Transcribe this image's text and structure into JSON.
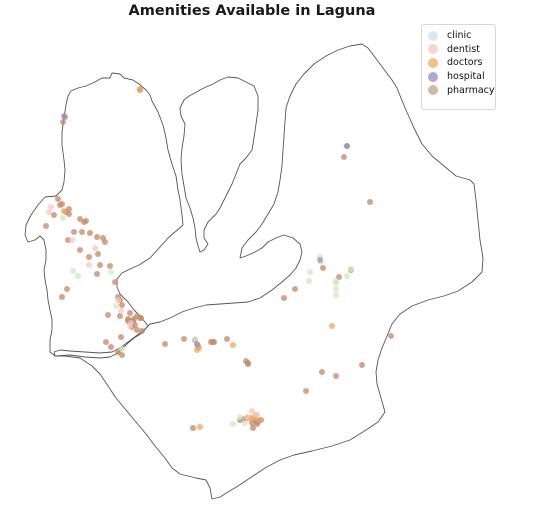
{
  "map": {
    "title": "Amenities Available in Laguna"
  },
  "legend": {
    "items": [
      {
        "label": "clinic",
        "color": "#d7e9f7"
      },
      {
        "label": "dentist",
        "color": "#fbd3d3"
      },
      {
        "label": "doctors",
        "color": "#f5bd8a"
      },
      {
        "label": "hospital",
        "color": "#b2a8cf"
      },
      {
        "label": "pharmacy",
        "color": "#d6b8a0"
      },
      {
        "label": "clinic",
        "color": "#d3efc5"
      }
    ]
  },
  "categories": {
    "clinic": {
      "color": "#cfe8bd"
    },
    "dentist": {
      "color": "#f7c6c1"
    },
    "doctors": {
      "color": "#f3a35a"
    },
    "hospital": {
      "color": "#9b8fc6"
    },
    "pharmacy": {
      "color": "#c48866"
    }
  },
  "points": {
    "pharmacy": [
      [
        63,
        122
      ],
      [
        65,
        117
      ],
      [
        140,
        90
      ],
      [
        58,
        199
      ],
      [
        62,
        204
      ],
      [
        66,
        212
      ],
      [
        69,
        209
      ],
      [
        54,
        215
      ],
      [
        46,
        226
      ],
      [
        68,
        240
      ],
      [
        80,
        219
      ],
      [
        84,
        222
      ],
      [
        90,
        233
      ],
      [
        97,
        237
      ],
      [
        103,
        238
      ],
      [
        105,
        242
      ],
      [
        74,
        232
      ],
      [
        82,
        232
      ],
      [
        89,
        257
      ],
      [
        98,
        254
      ],
      [
        100,
        265
      ],
      [
        110,
        266
      ],
      [
        80,
        250
      ],
      [
        115,
        282
      ],
      [
        118,
        297
      ],
      [
        120,
        300
      ],
      [
        122,
        305
      ],
      [
        108,
        315
      ],
      [
        120,
        316
      ],
      [
        128,
        319
      ],
      [
        132,
        321
      ],
      [
        137,
        316
      ],
      [
        141,
        318
      ],
      [
        132,
        327
      ],
      [
        137,
        330
      ],
      [
        142,
        331
      ],
      [
        135,
        325
      ],
      [
        121,
        337
      ],
      [
        97,
        274
      ],
      [
        62,
        297
      ],
      [
        67,
        289
      ],
      [
        106,
        342
      ],
      [
        111,
        347
      ],
      [
        118,
        352
      ],
      [
        122,
        355
      ],
      [
        165,
        344
      ],
      [
        184,
        339
      ],
      [
        195,
        340
      ],
      [
        211,
        342
      ],
      [
        214,
        342
      ],
      [
        227,
        339
      ],
      [
        248,
        364
      ],
      [
        246,
        361
      ],
      [
        240,
        420
      ],
      [
        247,
        418
      ],
      [
        252,
        423
      ],
      [
        253,
        428
      ],
      [
        258,
        422
      ],
      [
        193,
        428
      ],
      [
        370,
        202
      ],
      [
        351,
        270
      ],
      [
        339,
        277
      ],
      [
        323,
        268
      ],
      [
        284,
        298
      ],
      [
        295,
        289
      ],
      [
        306,
        391
      ],
      [
        322,
        372
      ],
      [
        336,
        376
      ],
      [
        362,
        365
      ],
      [
        391,
        336
      ],
      [
        344,
        157
      ],
      [
        347,
        146
      ],
      [
        213,
        342
      ],
      [
        198,
        346
      ],
      [
        140,
        318
      ],
      [
        130,
        313
      ],
      [
        86,
        221
      ],
      [
        60,
        205
      ],
      [
        69,
        214
      ],
      [
        134,
        319
      ],
      [
        133,
        322
      ],
      [
        128,
        321
      ],
      [
        255,
        420
      ],
      [
        257,
        424
      ],
      [
        261,
        420
      ],
      [
        244,
        419
      ],
      [
        248,
        363
      ]
    ],
    "doctors": [
      [
        332,
        326
      ],
      [
        233,
        345
      ],
      [
        199,
        348
      ],
      [
        197,
        350
      ],
      [
        259,
        420
      ],
      [
        252,
        418
      ],
      [
        256,
        415
      ],
      [
        249,
        418
      ],
      [
        200,
        427
      ],
      [
        64,
        211
      ],
      [
        140,
        89
      ]
    ],
    "dentist": [
      [
        51,
        207
      ],
      [
        49,
        212
      ],
      [
        131,
        323
      ],
      [
        130,
        326
      ],
      [
        121,
        311
      ],
      [
        118,
        300
      ],
      [
        252,
        411
      ],
      [
        257,
        415
      ],
      [
        247,
        417
      ],
      [
        72,
        240
      ],
      [
        95,
        248
      ],
      [
        89,
        265
      ]
    ],
    "clinic": [
      [
        63,
        218
      ],
      [
        73,
        271
      ],
      [
        78,
        276
      ],
      [
        111,
        272
      ],
      [
        116,
        306
      ],
      [
        122,
        349
      ],
      [
        195,
        339
      ],
      [
        233,
        424
      ],
      [
        240,
        417
      ],
      [
        245,
        423
      ],
      [
        320,
        257
      ],
      [
        321,
        262
      ],
      [
        336,
        283
      ],
      [
        336,
        289
      ],
      [
        336,
        295
      ],
      [
        310,
        272
      ],
      [
        309,
        281
      ],
      [
        347,
        276
      ],
      [
        351,
        269
      ],
      [
        336,
        281
      ]
    ],
    "hospital": [
      [
        347,
        146
      ],
      [
        320,
        260
      ],
      [
        64,
        116
      ],
      [
        197,
        344
      ]
    ]
  }
}
